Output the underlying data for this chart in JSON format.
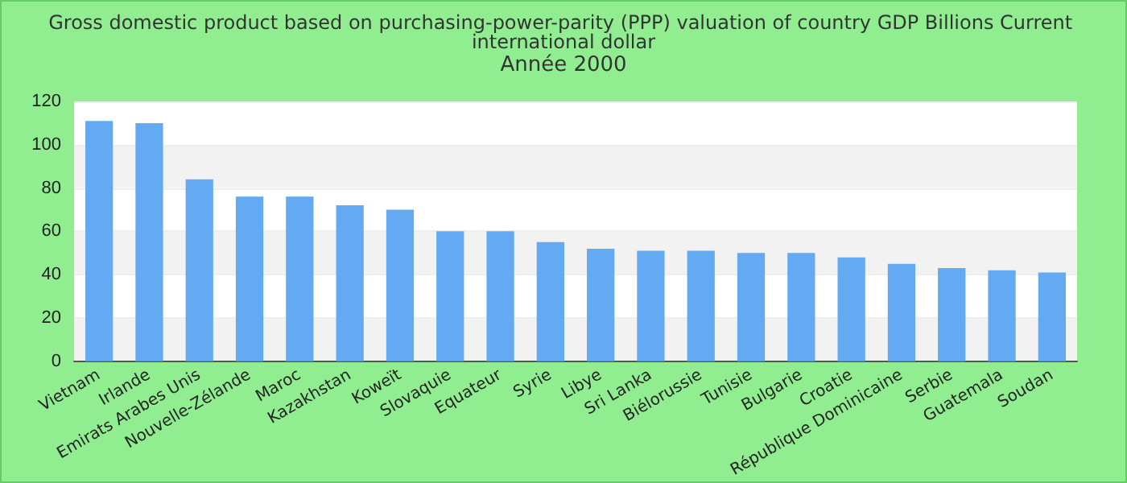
{
  "chart_data": {
    "type": "bar",
    "title": "Gross domestic product based on purchasing-power-parity (PPP) valuation of country GDP Billions Current international dollar",
    "subtitle": "Année 2000",
    "categories": [
      "Vietnam",
      "Irlande",
      "Emirats Arabes Unis",
      "Nouvelle-Zélande",
      "Maroc",
      "Kazakhstan",
      "Koweït",
      "Slovaquie",
      "Equateur",
      "Syrie",
      "Libye",
      "Sri Lanka",
      "Biélorussie",
      "Tunisie",
      "Bulgarie",
      "Croatie",
      "République Dominicaine",
      "Serbie",
      "Guatemala",
      "Soudan"
    ],
    "values": [
      111,
      110,
      84,
      76,
      76,
      72,
      70,
      60,
      60,
      55,
      52,
      51,
      51,
      50,
      50,
      48,
      45,
      43,
      42,
      41
    ],
    "color": "#63aaf2",
    "ylim": [
      0,
      120
    ],
    "yticks": [
      0,
      20,
      40,
      60,
      80,
      100,
      120
    ],
    "grid": "y"
  }
}
